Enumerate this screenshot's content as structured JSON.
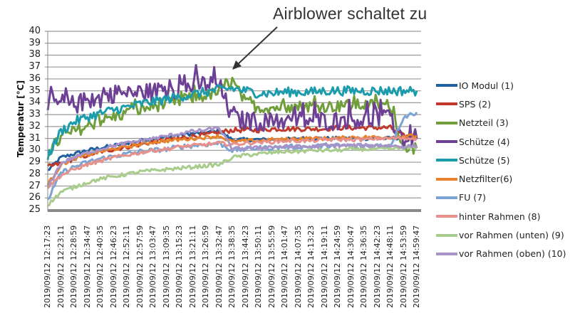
{
  "chart_data": {
    "type": "line",
    "title": "",
    "annotation": "Airblower  schaltet zu",
    "xlabel": "",
    "ylabel": "Temperatur [°C]",
    "ylim": [
      25,
      40
    ],
    "yticks": [
      "40",
      "39",
      "38",
      "37",
      "36",
      "35",
      "34",
      "33",
      "32",
      "31",
      "30",
      "29",
      "28",
      "27",
      "26",
      "25"
    ],
    "grid": true,
    "legend_position": "right",
    "x": [
      "2019/09/12 12:17:23",
      "2019/09/12 12:23:11",
      "2019/09/12 12:28:59",
      "2019/09/12 12:34:47",
      "2019/09/12 12:40:35",
      "2019/09/12 12:46:23",
      "2019/09/12 12:52:11",
      "2019/09/12 12:57:59",
      "2019/09/12 13:03:47",
      "2019/09/12 13:09:35",
      "2019/09/12 13:15:23",
      "2019/09/12 13:21:11",
      "2019/09/12 13:26:59",
      "2019/09/12 13:32:47",
      "2019/09/12 13:38:35",
      "2019/09/12 13:44:23",
      "2019/09/12 13:50:11",
      "2019/09/12 13:55:59",
      "2019/09/12 14:01:47",
      "2019/09/12 14:07:35",
      "2019/09/12 14:13:23",
      "2019/09/12 14:19:11",
      "2019/09/12 14:24:59",
      "2019/09/12 14:30:47",
      "2019/09/12 14:36:35",
      "2019/09/12 14:42:23",
      "2019/09/12 14:48:11",
      "2019/09/12 14:53:59",
      "2019/09/12 14:59:47"
    ],
    "series": [
      {
        "name": "IO Modul (1)",
        "color": "#1f5f9e",
        "noise": 0.15,
        "values": [
          28.3,
          29.4,
          29.7,
          30.0,
          30.2,
          30.4,
          30.6,
          30.8,
          31.0,
          31.1,
          31.3,
          31.4,
          31.5,
          31.6,
          30.9,
          30.9,
          30.9,
          30.9,
          30.9,
          31.0,
          31.0,
          31.0,
          31.0,
          31.0,
          31.0,
          31.0,
          31.0,
          31.1,
          31.1
        ]
      },
      {
        "name": "SPS (2)",
        "color": "#c0392b",
        "noise": 0.2,
        "values": [
          28.6,
          28.9,
          29.3,
          29.6,
          29.9,
          30.1,
          30.3,
          30.5,
          30.7,
          30.9,
          31.0,
          31.2,
          31.3,
          31.5,
          31.7,
          31.7,
          31.7,
          31.8,
          31.8,
          31.8,
          31.8,
          31.8,
          31.9,
          31.9,
          31.9,
          31.9,
          31.9,
          31.2,
          31.2
        ]
      },
      {
        "name": "Netzteil (3)",
        "color": "#6f9e3a",
        "noise": 0.5,
        "values": [
          29.8,
          31.0,
          31.6,
          32.0,
          32.5,
          32.8,
          33.1,
          33.4,
          33.7,
          33.9,
          34.1,
          34.4,
          34.6,
          34.9,
          35.8,
          34.0,
          33.6,
          33.6,
          33.6,
          33.7,
          33.7,
          33.7,
          33.7,
          33.8,
          33.8,
          33.8,
          33.8,
          30.2,
          30.2
        ]
      },
      {
        "name": "Schütze (4)",
        "color": "#6d3f95",
        "noise": 0.8,
        "values": [
          33.5,
          34.0,
          33.8,
          34.2,
          34.3,
          34.8,
          34.6,
          34.9,
          34.9,
          35.1,
          35.2,
          35.4,
          35.6,
          35.5,
          32.6,
          32.5,
          32.4,
          32.4,
          32.4,
          32.5,
          32.5,
          32.5,
          32.5,
          32.6,
          32.6,
          32.6,
          32.6,
          30.9,
          31.0
        ]
      },
      {
        "name": "Schütze (5)",
        "color": "#1a9cad",
        "noise": 0.4,
        "values": [
          29.5,
          31.6,
          32.4,
          32.8,
          33.1,
          33.4,
          33.6,
          33.9,
          34.1,
          34.3,
          34.5,
          34.7,
          34.9,
          35.1,
          35.2,
          35.0,
          34.8,
          34.8,
          34.9,
          34.9,
          34.9,
          35.0,
          35.0,
          35.0,
          35.0,
          35.0,
          35.0,
          35.0,
          35.0
        ]
      },
      {
        "name": "Netzfilter(6)",
        "color": "#e8822a",
        "noise": 0.15,
        "values": [
          27.1,
          28.8,
          29.3,
          29.6,
          29.9,
          30.1,
          30.3,
          30.5,
          30.7,
          30.8,
          30.9,
          31.0,
          31.1,
          31.2,
          30.7,
          30.8,
          30.8,
          30.9,
          30.9,
          31.0,
          31.0,
          31.0,
          31.0,
          31.1,
          31.1,
          31.1,
          31.1,
          31.2,
          31.2
        ]
      },
      {
        "name": "FU (7)",
        "color": "#7ba3d3",
        "noise": 0.2,
        "values": [
          25.8,
          28.1,
          28.6,
          29.0,
          29.3,
          29.5,
          29.7,
          29.9,
          30.0,
          30.1,
          30.3,
          30.4,
          30.5,
          30.6,
          30.0,
          30.1,
          30.2,
          30.2,
          30.3,
          30.3,
          30.3,
          30.4,
          30.4,
          30.4,
          30.4,
          30.4,
          30.4,
          32.8,
          33.2
        ]
      },
      {
        "name": "hinter Rahmen (8)",
        "color": "#e8908a",
        "noise": 0.15,
        "values": [
          26.9,
          27.9,
          28.4,
          28.8,
          29.1,
          29.4,
          29.6,
          29.8,
          30.0,
          30.1,
          30.3,
          30.4,
          30.5,
          30.6,
          30.5,
          30.6,
          30.7,
          30.7,
          30.8,
          30.8,
          30.8,
          30.9,
          30.9,
          30.9,
          30.9,
          31.0,
          31.0,
          31.0,
          31.0
        ]
      },
      {
        "name": "vor Rahmen (unten) (9)",
        "color": "#a8cc8c",
        "noise": 0.15,
        "values": [
          25.4,
          26.5,
          26.9,
          27.3,
          27.6,
          27.8,
          28.0,
          28.2,
          28.3,
          28.4,
          28.5,
          28.6,
          28.7,
          28.8,
          29.4,
          29.6,
          29.7,
          29.8,
          29.9,
          29.9,
          30.0,
          30.0,
          30.0,
          30.1,
          30.1,
          30.1,
          30.1,
          30.2,
          30.2
        ]
      },
      {
        "name": "vor Rahmen (oben) (10)",
        "color": "#a893c8",
        "noise": 0.15,
        "values": [
          26.9,
          28.9,
          29.4,
          29.8,
          30.1,
          30.4,
          30.6,
          30.8,
          31.0,
          31.2,
          31.4,
          31.6,
          31.7,
          31.9,
          30.1,
          30.2,
          30.2,
          30.3,
          30.3,
          30.3,
          30.3,
          30.4,
          30.4,
          30.4,
          30.4,
          30.4,
          30.4,
          30.3,
          30.4
        ]
      }
    ]
  }
}
